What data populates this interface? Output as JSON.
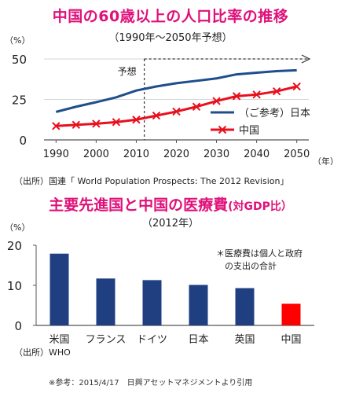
{
  "header": {
    "title1": "中国の60歳以上の人口比率の推移",
    "subtitle1": "（1990年～2050年予想）",
    "title2_main": "主要先進国と中国の医療費",
    "title2_small": "(対GDP比）",
    "subtitle2": "（2012年）"
  },
  "source1": "（出所）国連「 World Population Prospects: The 2012 Revision」",
  "source2": "（出所）WHO",
  "footnote": "※参考：2015/4/17　日興アセットマネジメントより引用",
  "chart_data": [
    {
      "type": "line",
      "title": "中国の60歳以上の人口比率の推移",
      "subtitle": "（1990年～2050年予想）",
      "ylabel": "（%）",
      "xlabel": "（年）",
      "ylim": [
        0,
        50
      ],
      "yticks": [
        0,
        25,
        50
      ],
      "xlim": [
        1987,
        2053
      ],
      "xticks": [
        1990,
        2000,
        2010,
        2020,
        2030,
        2040,
        2050
      ],
      "annotation": "予想",
      "forecast_start": 2012,
      "legend_position": "right",
      "series": [
        {
          "name": "（ご参考）日本",
          "color": "#1f4e8c",
          "marker": "none",
          "x": [
            1990,
            1995,
            2000,
            2005,
            2010,
            2015,
            2020,
            2025,
            2030,
            2035,
            2040,
            2045,
            2050
          ],
          "values": [
            17.3,
            20.5,
            23.3,
            26.3,
            30.5,
            33,
            35,
            36.5,
            38,
            40.5,
            41.5,
            42.5,
            43
          ]
        },
        {
          "name": "中国",
          "color": "#e8101e",
          "marker": "x",
          "x": [
            1990,
            1995,
            2000,
            2005,
            2010,
            2015,
            2020,
            2025,
            2030,
            2035,
            2040,
            2045,
            2050
          ],
          "values": [
            8.6,
            9.3,
            10,
            11,
            12.5,
            15,
            17.5,
            20.5,
            24,
            27,
            28,
            30,
            33
          ]
        }
      ]
    },
    {
      "type": "bar",
      "title": "主要先進国と中国の医療費(対GDP比）",
      "subtitle": "（2012年）",
      "ylabel": "（%）",
      "ylim": [
        0,
        20
      ],
      "yticks": [
        0,
        10,
        20
      ],
      "categories": [
        "米国",
        "フランス",
        "ドイツ",
        "日本",
        "英国",
        "中国"
      ],
      "values": [
        17.9,
        11.7,
        11.3,
        10.1,
        9.3,
        5.4
      ],
      "colors": [
        "#1f3f80",
        "#1f3f80",
        "#1f3f80",
        "#1f3f80",
        "#1f3f80",
        "#ff0000"
      ],
      "annotation": "＊医療費は個人と政府\n　の支出の合計"
    }
  ]
}
